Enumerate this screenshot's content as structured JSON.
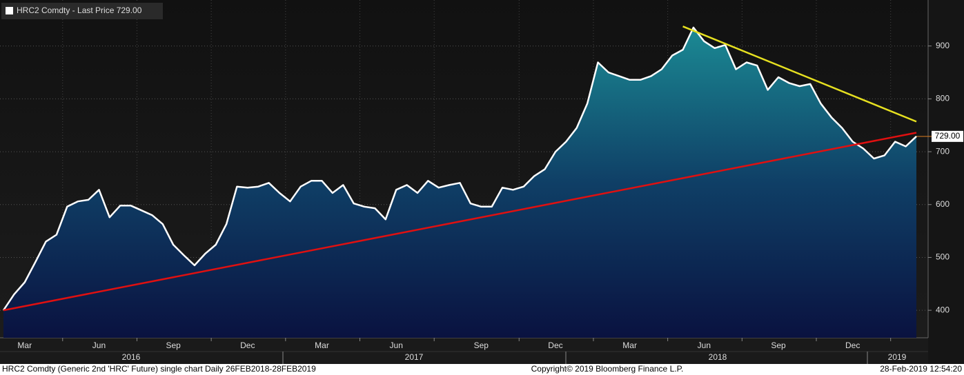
{
  "chart_data": {
    "type": "line",
    "legend": "HRC2 Comdty - Last Price 729.00",
    "categories": [
      null,
      null,
      "Mar",
      null,
      null,
      null,
      null,
      null,
      null,
      "Jun",
      null,
      null,
      null,
      null,
      null,
      null,
      "Sep",
      null,
      null,
      null,
      null,
      null,
      null,
      "Dec",
      null,
      null,
      null,
      null,
      null,
      null,
      "Mar",
      null,
      null,
      null,
      null,
      null,
      null,
      "Jun",
      null,
      null,
      null,
      null,
      null,
      null,
      null,
      "Sep",
      null,
      null,
      null,
      null,
      null,
      null,
      "Dec",
      null,
      null,
      null,
      null,
      null,
      null,
      "Mar",
      null,
      null,
      null,
      null,
      null,
      null,
      "Jun",
      null,
      null,
      null,
      null,
      null,
      null,
      "Sep",
      null,
      null,
      null,
      null,
      null,
      null,
      "Dec",
      null,
      null,
      null,
      null,
      null,
      null
    ],
    "series": [
      {
        "color": "#ffffff",
        "values": [
          400,
          430,
          453,
          491,
          530,
          543,
          596,
          606,
          609,
          628,
          576,
          598,
          598,
          589,
          580,
          563,
          524,
          504,
          485,
          507,
          524,
          563,
          634,
          632,
          634,
          641,
          622,
          606,
          634,
          645,
          645,
          622,
          637,
          602,
          596,
          593,
          572,
          628,
          637,
          622,
          645,
          632,
          637,
          641,
          602,
          596,
          596,
          632,
          628,
          634,
          654,
          667,
          700,
          719,
          745,
          791,
          869,
          850,
          843,
          836,
          836,
          843,
          856,
          882,
          893,
          935,
          909,
          896,
          902,
          856,
          869,
          863,
          817,
          841,
          830,
          824,
          828,
          791,
          765,
          745,
          719,
          706,
          687,
          693,
          719,
          710,
          729
        ]
      }
    ],
    "years": [
      "2016",
      "2017",
      "2018",
      "2019"
    ],
    "trendlines": [
      {
        "color": "#e01010",
        "start": {
          "index": 0,
          "value": 400
        },
        "end": {
          "index": 86,
          "value": 736
        }
      },
      {
        "color": "#e6e020",
        "start": {
          "index": 64,
          "value": 937
        },
        "end": {
          "index": 86,
          "value": 757
        }
      }
    ],
    "last_value": 729,
    "last_value_label": "729.00",
    "ylim": [
      348,
      987
    ],
    "yticks": [
      400,
      500,
      600,
      700,
      800,
      900
    ],
    "grid": true,
    "footer_left": "HRC2 Comdty (Generic 2nd 'HRC' Future) single chart  Daily 26FEB2018-28FEB2019",
    "footer_center": "Copyright© 2019 Bloomberg Finance L.P.",
    "footer_right": "28-Feb-2019 12:54:20"
  }
}
